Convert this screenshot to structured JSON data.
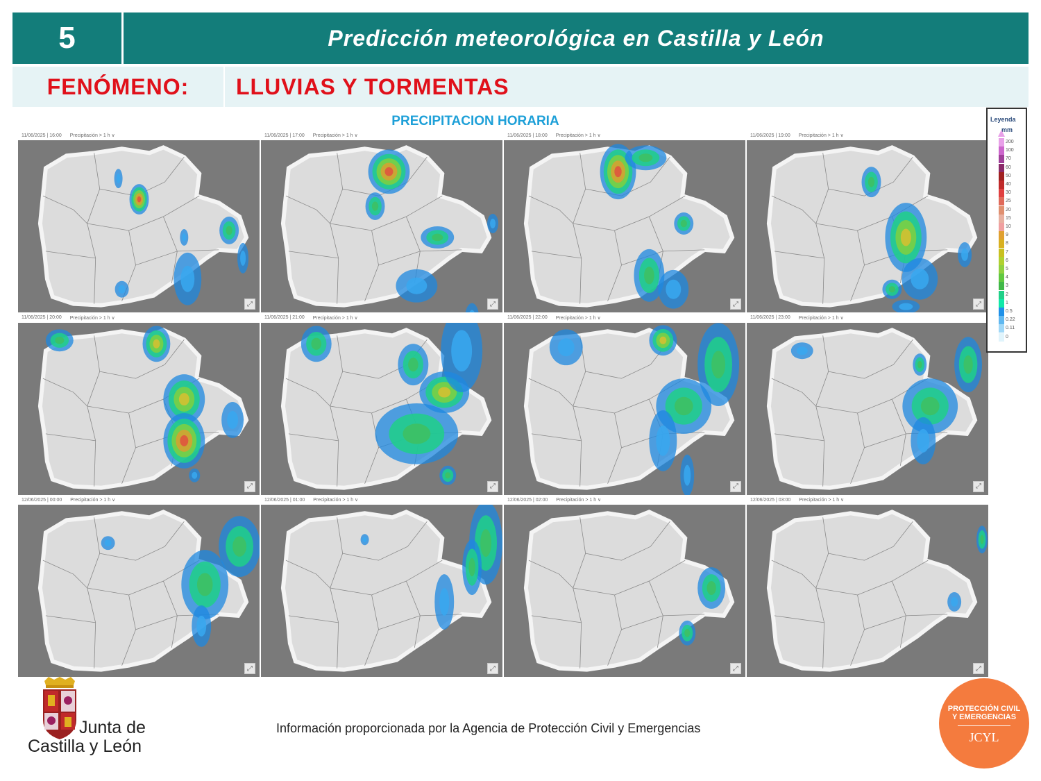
{
  "header": {
    "number": "5",
    "title": "Predicción meteorológica en Castilla y León"
  },
  "phenomenon": {
    "label": "FENÓMENO:",
    "value": "LLUVIAS Y TORMENTAS"
  },
  "section_title": "PRECIPITACION HORARIA",
  "panels": [
    {
      "date": "11/06/2025",
      "time": "16:00",
      "variable": "Precipitación > 1 h"
    },
    {
      "date": "11/06/2025",
      "time": "17:00",
      "variable": "Precipitación > 1 h"
    },
    {
      "date": "11/06/2025",
      "time": "18:00",
      "variable": "Precipitación > 1 h"
    },
    {
      "date": "11/06/2025",
      "time": "19:00",
      "variable": "Precipitación > 1 h"
    },
    {
      "date": "11/06/2025",
      "time": "20:00",
      "variable": "Precipitación > 1 h"
    },
    {
      "date": "11/06/2025",
      "time": "21:00",
      "variable": "Precipitación > 1 h"
    },
    {
      "date": "11/06/2025",
      "time": "22:00",
      "variable": "Precipitación > 1 h"
    },
    {
      "date": "11/06/2025",
      "time": "23:00",
      "variable": "Precipitación > 1 h"
    },
    {
      "date": "12/06/2025",
      "time": "00:00",
      "variable": "Precipitación > 1 h"
    },
    {
      "date": "12/06/2025",
      "time": "01:00",
      "variable": "Precipitación > 1 h"
    },
    {
      "date": "12/06/2025",
      "time": "02:00",
      "variable": "Precipitación > 1 h"
    },
    {
      "date": "12/06/2025",
      "time": "03:00",
      "variable": "Precipitación > 1 h"
    }
  ],
  "legend": {
    "title": "Leyenda",
    "unit": "mm",
    "entries": [
      {
        "label": "200",
        "color": "#e8a0e8"
      },
      {
        "label": "100",
        "color": "#cc66cc"
      },
      {
        "label": "70",
        "color": "#a0409a"
      },
      {
        "label": "60",
        "color": "#8a2a6a"
      },
      {
        "label": "50",
        "color": "#a02020"
      },
      {
        "label": "40",
        "color": "#c02a2a"
      },
      {
        "label": "30",
        "color": "#e04040"
      },
      {
        "label": "25",
        "color": "#e06a5a"
      },
      {
        "label": "20",
        "color": "#e09070"
      },
      {
        "label": "15",
        "color": "#e8b0a0"
      },
      {
        "label": "10",
        "color": "#f0a0a0"
      },
      {
        "label": "9",
        "color": "#e0a030"
      },
      {
        "label": "8",
        "color": "#d8b020"
      },
      {
        "label": "7",
        "color": "#c8c020"
      },
      {
        "label": "6",
        "color": "#b0d030"
      },
      {
        "label": "5",
        "color": "#90d040"
      },
      {
        "label": "4",
        "color": "#60c840"
      },
      {
        "label": "3",
        "color": "#40b848"
      },
      {
        "label": "2",
        "color": "#20d088"
      },
      {
        "label": "1",
        "color": "#10e8a8"
      },
      {
        "label": "0.5",
        "color": "#1e90e8"
      },
      {
        "label": "0.22",
        "color": "#60b8f0"
      },
      {
        "label": "0.11",
        "color": "#a0d8f8"
      },
      {
        "label": "0",
        "color": "#e0f4fc"
      }
    ]
  },
  "logo": {
    "line1": "Junta de",
    "line2": "Castilla y León"
  },
  "footer_note": "Información proporcionada por la Agencia de Protección Civil y Emergencias",
  "badge": {
    "line1": "PROTECCIÓN CIVIL",
    "line2": "Y EMERGENCIAS",
    "line3": "JCYL"
  },
  "colors": {
    "header": "#137d7a",
    "phenomenon_text": "#e0101a",
    "section_title": "#1ea0d8",
    "badge": "#f47b3e"
  }
}
